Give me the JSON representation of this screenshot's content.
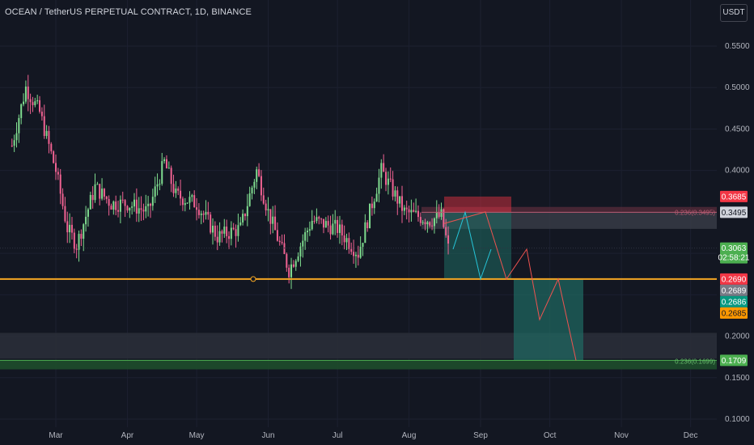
{
  "header": {
    "title": "OCEAN / TetherUS PERPETUAL CONTRACT, 1D, BINANCE",
    "currency_button": "USDT"
  },
  "colors": {
    "background": "#131722",
    "grid": "#1c2030",
    "up_candle": "#26a69a",
    "down_candle": "#ef5350",
    "up_wick": "#7fdc8f",
    "down_wick": "#f06292",
    "support_line": "#f5a623",
    "target_line": "#4caf50",
    "resistance_zone": "#5d2d3c",
    "path_projection_cyan": "#26c6da",
    "path_projection_red": "#ef5350"
  },
  "chart_data": {
    "type": "candlestick",
    "symbol": "OCEAN / TetherUS PERPETUAL CONTRACT",
    "interval": "1D",
    "exchange": "BINANCE",
    "x_ticks": [
      "Mar",
      "Apr",
      "May",
      "Jun",
      "Jul",
      "Aug",
      "Sep",
      "Oct",
      "Nov",
      "Dec"
    ],
    "y_ticks": [
      "0.5500",
      "0.5000",
      "0.4500",
      "0.4000",
      "0.2000",
      "0.1500",
      "0.1000"
    ],
    "ylim": [
      0.095,
      0.585
    ],
    "closes_approx": [
      {
        "date": "Feb 10",
        "close": 0.43
      },
      {
        "date": "Feb 16",
        "close": 0.5
      },
      {
        "date": "Feb 22",
        "close": 0.47
      },
      {
        "date": "Mar 1",
        "close": 0.4
      },
      {
        "date": "Mar 6",
        "close": 0.33
      },
      {
        "date": "Mar 10",
        "close": 0.31
      },
      {
        "date": "Mar 18",
        "close": 0.38
      },
      {
        "date": "Mar 25",
        "close": 0.36
      },
      {
        "date": "Apr 1",
        "close": 0.36
      },
      {
        "date": "Apr 10",
        "close": 0.35
      },
      {
        "date": "Apr 17",
        "close": 0.41
      },
      {
        "date": "Apr 22",
        "close": 0.37
      },
      {
        "date": "May 1",
        "close": 0.36
      },
      {
        "date": "May 10",
        "close": 0.32
      },
      {
        "date": "May 20",
        "close": 0.33
      },
      {
        "date": "May 27",
        "close": 0.4
      },
      {
        "date": "Jun 1",
        "close": 0.35
      },
      {
        "date": "Jun 10",
        "close": 0.28
      },
      {
        "date": "Jun 20",
        "close": 0.34
      },
      {
        "date": "Jul 1",
        "close": 0.33
      },
      {
        "date": "Jul 10",
        "close": 0.3
      },
      {
        "date": "Jul 20",
        "close": 0.4
      },
      {
        "date": "Jul 30",
        "close": 0.35
      },
      {
        "date": "Aug 10",
        "close": 0.34
      },
      {
        "date": "Aug 15",
        "close": 0.345
      },
      {
        "date": "Aug 18",
        "close": 0.306
      }
    ],
    "price_badges": [
      {
        "label": "0.3685",
        "value": 0.3685,
        "bg": "#f23645",
        "fg": "#ffffff"
      },
      {
        "label": "0.3495",
        "value": 0.3495,
        "bg": "#d1d4dc",
        "fg": "#131722"
      },
      {
        "label": "0.3063",
        "value": 0.3063,
        "sub": "02:58:21",
        "bg": "#4caf50",
        "fg": "#ffffff"
      },
      {
        "label": "0.2690",
        "value": 0.269,
        "bg": "#f23645",
        "fg": "#ffffff"
      },
      {
        "label": "0.2689",
        "value": 0.2689,
        "bg": "#787b86",
        "fg": "#ffffff"
      },
      {
        "label": "0.2686",
        "value": 0.2686,
        "bg": "#089981",
        "fg": "#ffffff"
      },
      {
        "label": "0.2685",
        "value": 0.2685,
        "bg": "#ff9800",
        "fg": "#131722"
      },
      {
        "label": "0.1709",
        "value": 0.1709,
        "bg": "#4caf50",
        "fg": "#ffffff"
      }
    ],
    "horizontal_lines": [
      {
        "name": "support",
        "value": 0.269,
        "color": "#f5a623"
      },
      {
        "name": "target",
        "value": 0.1709,
        "color": "#4caf50"
      }
    ],
    "fib_labels": [
      {
        "text": "0.236(0.3495)",
        "value": 0.3495,
        "color": "#b85b72"
      },
      {
        "text": "0.236(0.1699)",
        "value": 0.1699,
        "color": "#66bb6a"
      }
    ],
    "zones": [
      {
        "name": "resistance-zone",
        "from": 0.3495,
        "to": 0.3295
      },
      {
        "name": "demand-zone",
        "from": 0.204,
        "to": 0.173
      },
      {
        "name": "green-target-band",
        "from": 0.1709,
        "to": 0.16
      }
    ],
    "projection": {
      "short_entry_box_top": 0.3685,
      "short_entry": 0.3495,
      "first_target": 0.269,
      "second_target": 0.1709
    }
  }
}
